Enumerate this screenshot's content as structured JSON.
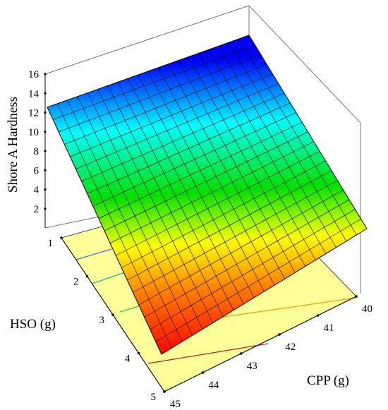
{
  "chart_data": {
    "type": "surface3d",
    "zlabel": "Shore A Hardness",
    "xlabel": "CPP (g)",
    "ylabel": "HSO (g)",
    "x_ticks": [
      40,
      41,
      42,
      43,
      44,
      45
    ],
    "y_ticks": [
      1,
      2,
      3,
      4,
      5
    ],
    "z_ticks": [
      2,
      4,
      6,
      8,
      10,
      12,
      14,
      16
    ],
    "xlim": [
      40,
      45
    ],
    "ylim": [
      1,
      5
    ],
    "zlim": [
      0,
      16
    ],
    "surface_corners": [
      {
        "cpp": 45,
        "hso": 1,
        "hardness": 11.5
      },
      {
        "cpp": 40,
        "hso": 1,
        "hardness": 16.2
      },
      {
        "cpp": 40,
        "hso": 5,
        "hardness": 7.0
      },
      {
        "cpp": 45,
        "hso": 5,
        "hardness": 1.5
      }
    ],
    "colormap": [
      "#ff0000",
      "#ff8000",
      "#ffff00",
      "#00e000",
      "#00ffff",
      "#0000ff"
    ],
    "floor_color": "#ffff99",
    "grid": true
  }
}
